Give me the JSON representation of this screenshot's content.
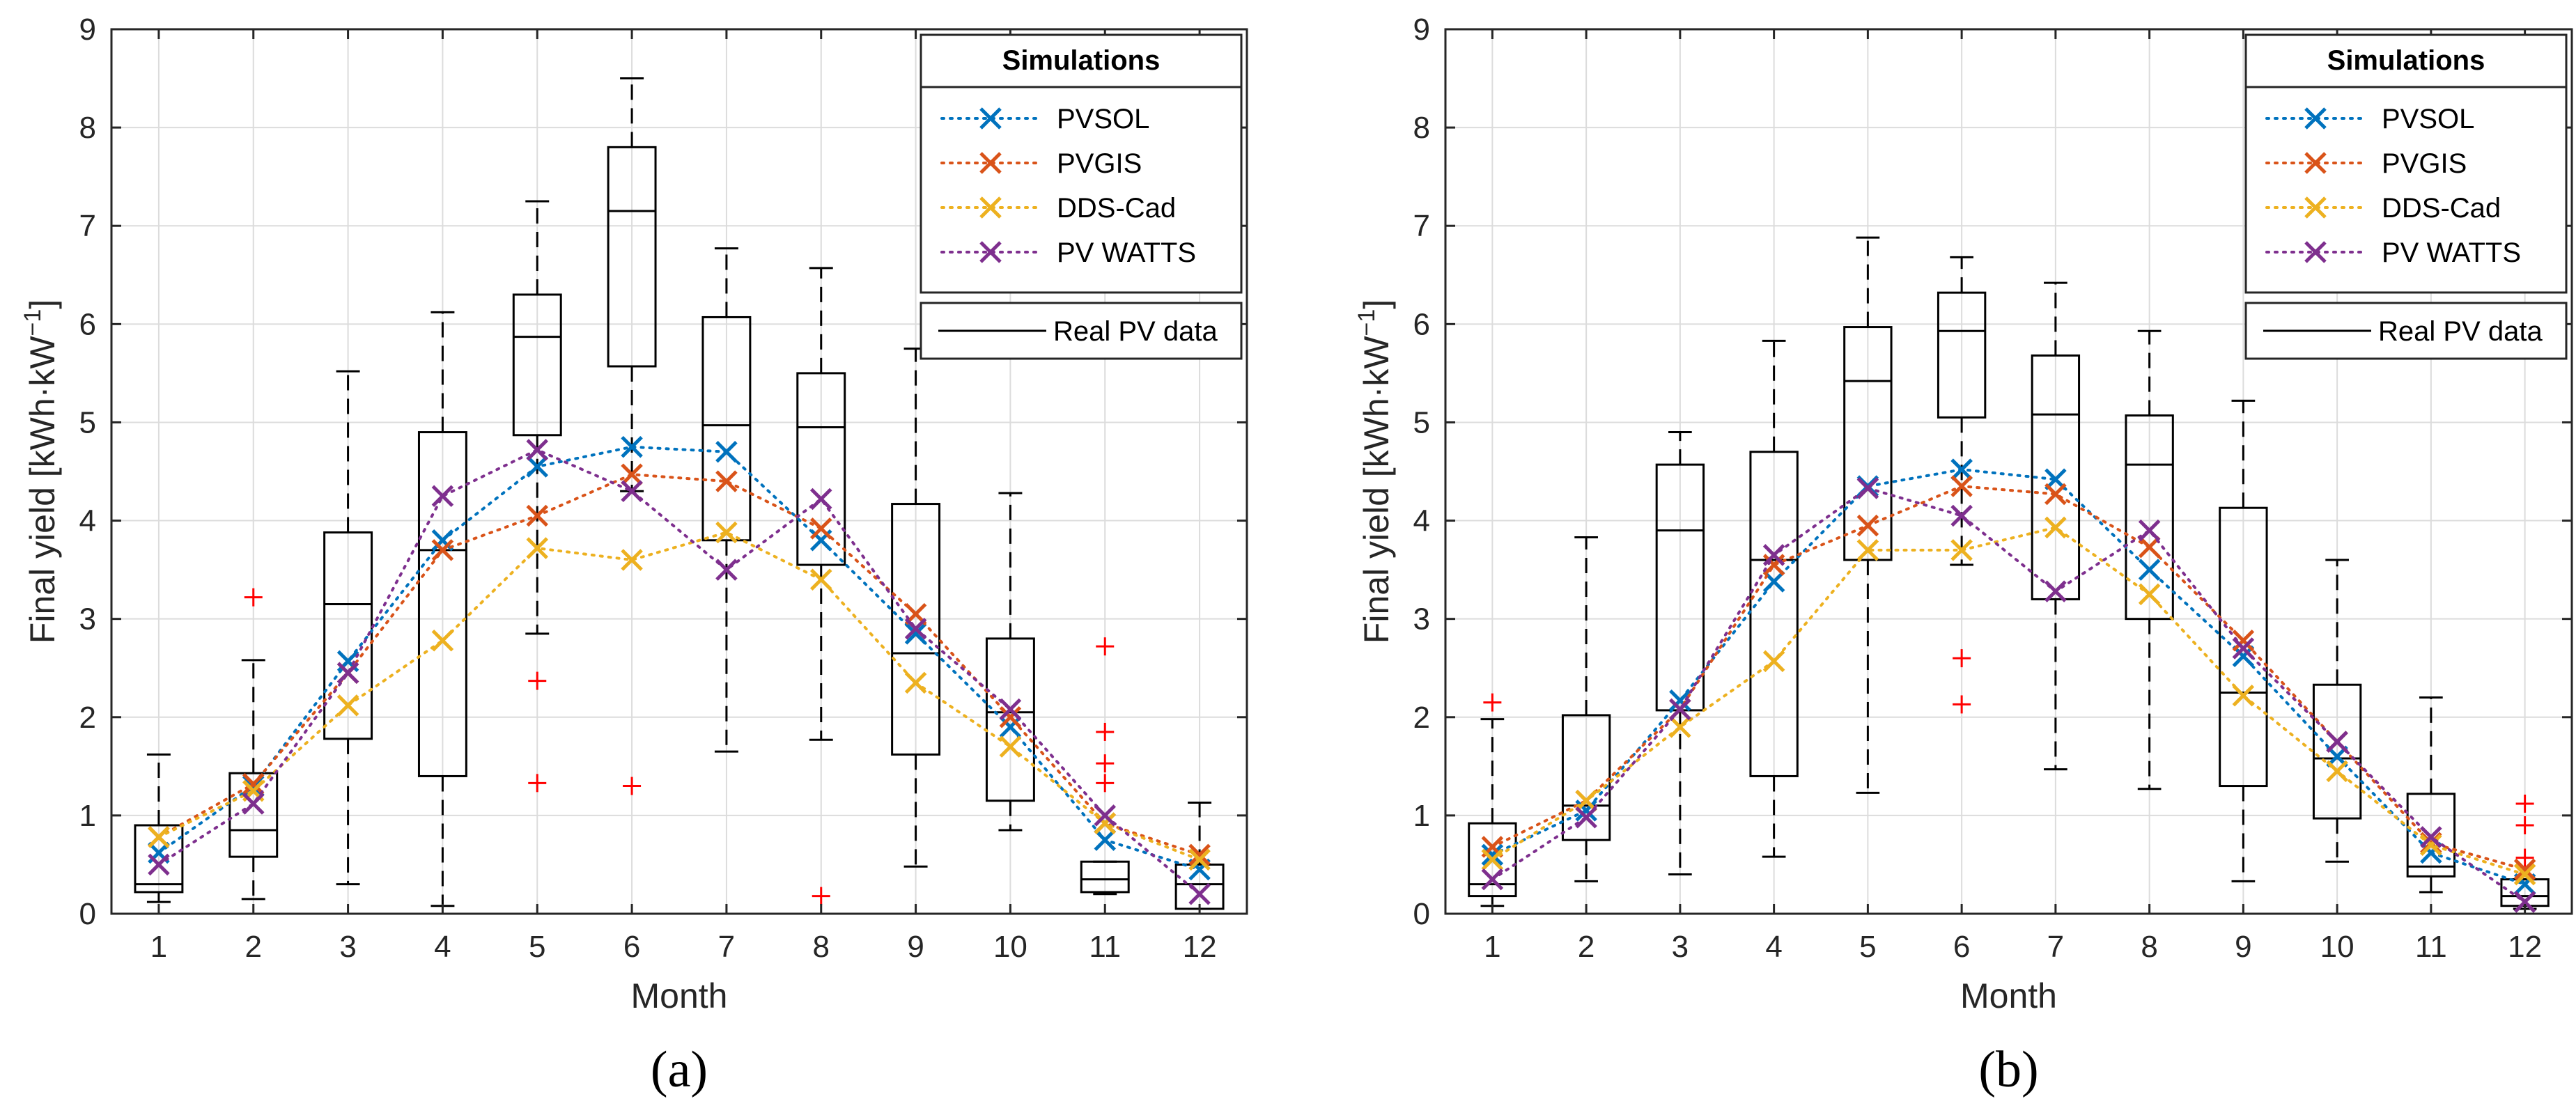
{
  "colors": {
    "PVSOL": "#0072BD",
    "PVGIS": "#D95319",
    "DDS-Cad": "#EDB120",
    "PV WATTS": "#7E2F8E",
    "outlier": "#FF0000",
    "box": "#000000",
    "grid": "#DCDCDC"
  },
  "chart_data": [
    {
      "type": "box",
      "panel_label": "(a)",
      "xlabel": "Month",
      "ylabel": "Final yield [kWh·kW",
      "ylabel_sup": "−1",
      "ylabel_end": "]",
      "ylim": [
        0,
        9
      ],
      "yticks": [
        "0",
        "1",
        "2",
        "3",
        "4",
        "5",
        "6",
        "7",
        "8",
        "9"
      ],
      "categories": [
        "1",
        "2",
        "3",
        "4",
        "5",
        "6",
        "7",
        "8",
        "9",
        "10",
        "11",
        "12"
      ],
      "grid": true,
      "legend": {
        "position": "top-right",
        "title": "Simulations",
        "real_label": "Real PV data"
      },
      "series": [
        {
          "name": "PVSOL",
          "values": [
            0.62,
            1.3,
            2.57,
            3.8,
            4.55,
            4.75,
            4.7,
            3.8,
            2.85,
            1.9,
            0.75,
            0.45
          ]
        },
        {
          "name": "PVGIS",
          "values": [
            0.78,
            1.32,
            2.45,
            3.7,
            4.05,
            4.47,
            4.4,
            3.92,
            3.05,
            2.0,
            0.92,
            0.6
          ]
        },
        {
          "name": "DDS-Cad",
          "values": [
            0.78,
            1.25,
            2.12,
            2.78,
            3.72,
            3.6,
            3.88,
            3.4,
            2.35,
            1.7,
            0.92,
            0.55
          ]
        },
        {
          "name": "PV WATTS",
          "values": [
            0.5,
            1.12,
            2.45,
            4.25,
            4.72,
            4.3,
            3.5,
            4.22,
            2.9,
            2.08,
            1.0,
            0.2
          ]
        }
      ],
      "real_pv_data": [
        {
          "whisker_low": 0.12,
          "q1": 0.22,
          "median": 0.3,
          "q3": 0.9,
          "whisker_high": 1.62,
          "outliers": []
        },
        {
          "whisker_low": 0.15,
          "q1": 0.58,
          "median": 0.85,
          "q3": 1.43,
          "whisker_high": 2.58,
          "outliers": [
            3.22
          ]
        },
        {
          "whisker_low": 0.3,
          "q1": 1.78,
          "median": 3.15,
          "q3": 3.88,
          "whisker_high": 5.52,
          "outliers": []
        },
        {
          "whisker_low": 0.08,
          "q1": 1.4,
          "median": 3.7,
          "q3": 4.9,
          "whisker_high": 6.12,
          "outliers": []
        },
        {
          "whisker_low": 2.85,
          "q1": 4.87,
          "median": 5.87,
          "q3": 6.3,
          "whisker_high": 7.25,
          "outliers": [
            2.37,
            1.33
          ]
        },
        {
          "whisker_low": 4.3,
          "q1": 5.57,
          "median": 7.15,
          "q3": 7.8,
          "whisker_high": 8.5,
          "outliers": [
            1.3
          ]
        },
        {
          "whisker_low": 1.65,
          "q1": 3.8,
          "median": 4.97,
          "q3": 6.07,
          "whisker_high": 6.77,
          "outliers": []
        },
        {
          "whisker_low": 1.77,
          "q1": 3.55,
          "median": 4.95,
          "q3": 5.5,
          "whisker_high": 6.57,
          "outliers": [
            0.18
          ]
        },
        {
          "whisker_low": 0.48,
          "q1": 1.62,
          "median": 2.65,
          "q3": 4.17,
          "whisker_high": 5.75,
          "outliers": []
        },
        {
          "whisker_low": 0.85,
          "q1": 1.15,
          "median": 2.05,
          "q3": 2.8,
          "whisker_high": 4.28,
          "outliers": []
        },
        {
          "whisker_low": 0.2,
          "q1": 0.22,
          "median": 0.35,
          "q3": 0.53,
          "whisker_high": 0.53,
          "outliers": [
            1.85,
            1.53,
            1.33,
            2.72
          ]
        },
        {
          "whisker_low": 0.05,
          "q1": 0.05,
          "median": 0.3,
          "q3": 0.5,
          "whisker_high": 1.13,
          "outliers": []
        }
      ]
    },
    {
      "type": "box",
      "panel_label": "(b)",
      "xlabel": "Month",
      "ylabel": "Final yield [kWh·kW",
      "ylabel_sup": "−1",
      "ylabel_end": "]",
      "ylim": [
        0,
        9
      ],
      "yticks": [
        "0",
        "1",
        "2",
        "3",
        "4",
        "5",
        "6",
        "7",
        "8",
        "9"
      ],
      "categories": [
        "1",
        "2",
        "3",
        "4",
        "5",
        "6",
        "7",
        "8",
        "9",
        "10",
        "11",
        "12"
      ],
      "grid": true,
      "legend": {
        "position": "top-right",
        "title": "Simulations",
        "real_label": "Real PV data"
      },
      "series": [
        {
          "name": "PVSOL",
          "values": [
            0.6,
            1.05,
            2.17,
            3.38,
            4.35,
            4.52,
            4.42,
            3.5,
            2.62,
            1.6,
            0.62,
            0.3
          ]
        },
        {
          "name": "PVGIS",
          "values": [
            0.68,
            1.15,
            2.08,
            3.55,
            3.95,
            4.35,
            4.27,
            3.73,
            2.78,
            1.75,
            0.72,
            0.45
          ]
        },
        {
          "name": "DDS-Cad",
          "values": [
            0.55,
            1.15,
            1.9,
            2.57,
            3.7,
            3.7,
            3.93,
            3.25,
            2.22,
            1.45,
            0.7,
            0.4
          ]
        },
        {
          "name": "PV WATTS",
          "values": [
            0.35,
            0.98,
            2.08,
            3.65,
            4.33,
            4.05,
            3.28,
            3.9,
            2.7,
            1.75,
            0.78,
            0.12
          ]
        }
      ],
      "real_pv_data": [
        {
          "whisker_low": 0.08,
          "q1": 0.18,
          "median": 0.3,
          "q3": 0.92,
          "whisker_high": 1.98,
          "outliers": [
            2.15
          ]
        },
        {
          "whisker_low": 0.33,
          "q1": 0.75,
          "median": 1.1,
          "q3": 2.02,
          "whisker_high": 3.83,
          "outliers": []
        },
        {
          "whisker_low": 0.4,
          "q1": 2.07,
          "median": 3.9,
          "q3": 4.57,
          "whisker_high": 4.9,
          "outliers": []
        },
        {
          "whisker_low": 0.58,
          "q1": 1.4,
          "median": 3.6,
          "q3": 4.7,
          "whisker_high": 5.83,
          "outliers": []
        },
        {
          "whisker_low": 1.23,
          "q1": 3.6,
          "median": 5.42,
          "q3": 5.97,
          "whisker_high": 6.88,
          "outliers": []
        },
        {
          "whisker_low": 3.55,
          "q1": 5.05,
          "median": 5.93,
          "q3": 6.32,
          "whisker_high": 6.68,
          "outliers": [
            2.6,
            2.13
          ]
        },
        {
          "whisker_low": 1.47,
          "q1": 3.2,
          "median": 5.08,
          "q3": 5.68,
          "whisker_high": 6.42,
          "outliers": []
        },
        {
          "whisker_low": 1.27,
          "q1": 3.0,
          "median": 4.57,
          "q3": 5.07,
          "whisker_high": 5.93,
          "outliers": []
        },
        {
          "whisker_low": 0.33,
          "q1": 1.3,
          "median": 2.25,
          "q3": 4.13,
          "whisker_high": 5.22,
          "outliers": []
        },
        {
          "whisker_low": 0.53,
          "q1": 0.97,
          "median": 1.58,
          "q3": 2.33,
          "whisker_high": 3.6,
          "outliers": []
        },
        {
          "whisker_low": 0.22,
          "q1": 0.38,
          "median": 0.48,
          "q3": 1.22,
          "whisker_high": 2.2,
          "outliers": []
        },
        {
          "whisker_low": 0.05,
          "q1": 0.08,
          "median": 0.18,
          "q3": 0.35,
          "whisker_high": 0.35,
          "outliers": [
            1.12,
            0.9,
            0.57
          ]
        }
      ]
    }
  ]
}
